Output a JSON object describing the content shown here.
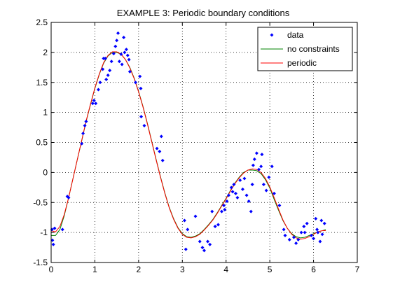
{
  "chart_data": {
    "type": "scatter",
    "title": "EXAMPLE 3: Periodic boundary conditions",
    "xlabel": "",
    "ylabel": "",
    "xlim": [
      0,
      7
    ],
    "ylim": [
      -1.5,
      2.5
    ],
    "xticks": [
      "0",
      "1",
      "2",
      "3",
      "4",
      "5",
      "6",
      "7"
    ],
    "yticks": [
      "-1.5",
      "-1",
      "-0.5",
      "0",
      "0.5",
      "1",
      "1.5",
      "2",
      "2.5"
    ],
    "grid": "dotted",
    "legend_position": "top-right",
    "series": [
      {
        "name": "data",
        "kind": "points",
        "color": "#0000ff",
        "points": [
          [
            0.02,
            -0.95
          ],
          [
            0.03,
            -1.13
          ],
          [
            0.05,
            -1.2
          ],
          [
            0.08,
            -0.93
          ],
          [
            0.26,
            -0.95
          ],
          [
            0.37,
            -0.4
          ],
          [
            0.4,
            -0.42
          ],
          [
            0.7,
            0.48
          ],
          [
            0.73,
            0.65
          ],
          [
            0.77,
            0.78
          ],
          [
            0.8,
            0.85
          ],
          [
            0.95,
            1.15
          ],
          [
            0.98,
            1.2
          ],
          [
            1.02,
            1.15
          ],
          [
            1.08,
            1.38
          ],
          [
            1.12,
            1.5
          ],
          [
            1.18,
            1.72
          ],
          [
            1.2,
            1.9
          ],
          [
            1.24,
            1.9
          ],
          [
            1.26,
            1.55
          ],
          [
            1.3,
            1.62
          ],
          [
            1.34,
            1.7
          ],
          [
            1.38,
            1.85
          ],
          [
            1.43,
            1.98
          ],
          [
            1.47,
            2.1
          ],
          [
            1.5,
            2.2
          ],
          [
            1.53,
            2.32
          ],
          [
            1.56,
            1.85
          ],
          [
            1.6,
            1.97
          ],
          [
            1.62,
            1.8
          ],
          [
            1.66,
            2.25
          ],
          [
            1.68,
            2.0
          ],
          [
            1.72,
            2.05
          ],
          [
            1.75,
            1.95
          ],
          [
            1.78,
            1.88
          ],
          [
            1.8,
            1.68
          ],
          [
            1.93,
            1.5
          ],
          [
            2.03,
            1.6
          ],
          [
            2.05,
            1.4
          ],
          [
            2.06,
            0.93
          ],
          [
            2.13,
            0.78
          ],
          [
            2.42,
            0.4
          ],
          [
            2.48,
            0.35
          ],
          [
            2.52,
            0.6
          ],
          [
            2.55,
            0.2
          ],
          [
            3.05,
            -0.8
          ],
          [
            3.08,
            -1.28
          ],
          [
            3.12,
            -0.95
          ],
          [
            3.3,
            -0.73
          ],
          [
            3.4,
            -1.15
          ],
          [
            3.46,
            -1.25
          ],
          [
            3.5,
            -1.3
          ],
          [
            3.58,
            -1.15
          ],
          [
            3.63,
            -1.2
          ],
          [
            3.68,
            -0.65
          ],
          [
            3.75,
            -0.9
          ],
          [
            3.82,
            -0.87
          ],
          [
            3.9,
            -0.65
          ],
          [
            3.95,
            -0.55
          ],
          [
            3.97,
            -0.62
          ],
          [
            4.02,
            -0.48
          ],
          [
            4.06,
            -0.38
          ],
          [
            4.12,
            -0.25
          ],
          [
            4.15,
            -0.32
          ],
          [
            4.18,
            -0.2
          ],
          [
            4.22,
            -0.35
          ],
          [
            4.26,
            -0.42
          ],
          [
            4.32,
            -0.13
          ],
          [
            4.38,
            -0.28
          ],
          [
            4.42,
            -0.1
          ],
          [
            4.47,
            -0.38
          ],
          [
            4.52,
            -0.48
          ],
          [
            4.57,
            -0.65
          ],
          [
            4.6,
            -0.2
          ],
          [
            4.62,
            0.12
          ],
          [
            4.65,
            0.22
          ],
          [
            4.7,
            0.32
          ],
          [
            4.75,
            0.05
          ],
          [
            4.8,
            0.1
          ],
          [
            4.82,
            0.3
          ],
          [
            4.86,
            -0.2
          ],
          [
            4.92,
            -0.3
          ],
          [
            4.98,
            -0.08
          ],
          [
            5.05,
            0.1
          ],
          [
            5.1,
            -0.35
          ],
          [
            5.22,
            -0.55
          ],
          [
            5.32,
            -0.95
          ],
          [
            5.35,
            -1.05
          ],
          [
            5.45,
            -1.12
          ],
          [
            5.55,
            -1.08
          ],
          [
            5.6,
            -1.18
          ],
          [
            5.65,
            -1.12
          ],
          [
            5.72,
            -1.0
          ],
          [
            5.78,
            -0.9
          ],
          [
            5.8,
            -1.0
          ],
          [
            5.85,
            -0.85
          ],
          [
            5.95,
            -1.05
          ],
          [
            6.0,
            -1.1
          ],
          [
            6.05,
            -0.77
          ],
          [
            6.08,
            -0.95
          ],
          [
            6.1,
            -1.0
          ],
          [
            6.15,
            -1.15
          ],
          [
            6.18,
            -0.8
          ],
          [
            6.2,
            -1.03
          ],
          [
            6.25,
            -0.85
          ]
        ]
      },
      {
        "name": "no constraints",
        "kind": "line",
        "color": "#008000",
        "points": [
          [
            0.0,
            -1.05
          ],
          [
            0.1,
            -1.05
          ],
          [
            0.2,
            -0.95
          ],
          [
            0.3,
            -0.72
          ],
          [
            0.4,
            -0.42
          ],
          [
            0.5,
            -0.1
          ],
          [
            0.6,
            0.22
          ],
          [
            0.7,
            0.53
          ],
          [
            0.8,
            0.85
          ],
          [
            0.9,
            1.13
          ],
          [
            1.0,
            1.4
          ],
          [
            1.1,
            1.63
          ],
          [
            1.2,
            1.82
          ],
          [
            1.3,
            1.94
          ],
          [
            1.4,
            2.0
          ],
          [
            1.5,
            2.0
          ],
          [
            1.6,
            1.97
          ],
          [
            1.7,
            1.88
          ],
          [
            1.8,
            1.75
          ],
          [
            1.9,
            1.57
          ],
          [
            2.0,
            1.35
          ],
          [
            2.1,
            1.1
          ],
          [
            2.2,
            0.82
          ],
          [
            2.3,
            0.52
          ],
          [
            2.4,
            0.22
          ],
          [
            2.5,
            -0.07
          ],
          [
            2.6,
            -0.34
          ],
          [
            2.7,
            -0.58
          ],
          [
            2.8,
            -0.77
          ],
          [
            2.9,
            -0.92
          ],
          [
            3.0,
            -1.02
          ],
          [
            3.1,
            -1.07
          ],
          [
            3.2,
            -1.08
          ],
          [
            3.3,
            -1.06
          ],
          [
            3.4,
            -1.02
          ],
          [
            3.5,
            -0.95
          ],
          [
            3.6,
            -0.87
          ],
          [
            3.7,
            -0.78
          ],
          [
            3.8,
            -0.67
          ],
          [
            3.9,
            -0.55
          ],
          [
            4.0,
            -0.43
          ],
          [
            4.1,
            -0.3
          ],
          [
            4.2,
            -0.18
          ],
          [
            4.3,
            -0.08
          ],
          [
            4.4,
            0.0
          ],
          [
            4.5,
            0.04
          ],
          [
            4.6,
            0.04
          ],
          [
            4.7,
            0.03
          ],
          [
            4.8,
            -0.02
          ],
          [
            4.9,
            -0.12
          ],
          [
            5.0,
            -0.26
          ],
          [
            5.1,
            -0.45
          ],
          [
            5.2,
            -0.63
          ],
          [
            5.3,
            -0.8
          ],
          [
            5.4,
            -0.93
          ],
          [
            5.5,
            -1.02
          ],
          [
            5.6,
            -1.07
          ],
          [
            5.7,
            -1.09
          ],
          [
            5.8,
            -1.08
          ],
          [
            5.9,
            -1.05
          ],
          [
            6.0,
            -1.02
          ],
          [
            6.1,
            -0.99
          ],
          [
            6.2,
            -0.97
          ],
          [
            6.28,
            -0.95
          ]
        ]
      },
      {
        "name": "periodic",
        "kind": "line",
        "color": "#ff0000",
        "points": [
          [
            0.0,
            -0.97
          ],
          [
            0.1,
            -0.99
          ],
          [
            0.2,
            -0.9
          ],
          [
            0.3,
            -0.7
          ],
          [
            0.4,
            -0.42
          ],
          [
            0.5,
            -0.1
          ],
          [
            0.6,
            0.22
          ],
          [
            0.7,
            0.54
          ],
          [
            0.8,
            0.86
          ],
          [
            0.9,
            1.14
          ],
          [
            1.0,
            1.41
          ],
          [
            1.1,
            1.64
          ],
          [
            1.2,
            1.83
          ],
          [
            1.3,
            1.95
          ],
          [
            1.4,
            2.01
          ],
          [
            1.5,
            2.01
          ],
          [
            1.6,
            1.97
          ],
          [
            1.7,
            1.88
          ],
          [
            1.8,
            1.74
          ],
          [
            1.9,
            1.56
          ],
          [
            2.0,
            1.34
          ],
          [
            2.1,
            1.09
          ],
          [
            2.2,
            0.81
          ],
          [
            2.3,
            0.51
          ],
          [
            2.4,
            0.21
          ],
          [
            2.5,
            -0.08
          ],
          [
            2.6,
            -0.35
          ],
          [
            2.7,
            -0.59
          ],
          [
            2.8,
            -0.78
          ],
          [
            2.9,
            -0.93
          ],
          [
            3.0,
            -1.03
          ],
          [
            3.1,
            -1.08
          ],
          [
            3.2,
            -1.09
          ],
          [
            3.3,
            -1.07
          ],
          [
            3.4,
            -1.03
          ],
          [
            3.5,
            -0.96
          ],
          [
            3.6,
            -0.88
          ],
          [
            3.7,
            -0.79
          ],
          [
            3.8,
            -0.68
          ],
          [
            3.9,
            -0.56
          ],
          [
            4.0,
            -0.44
          ],
          [
            4.1,
            -0.31
          ],
          [
            4.2,
            -0.19
          ],
          [
            4.3,
            -0.09
          ],
          [
            4.4,
            -0.01
          ],
          [
            4.5,
            0.04
          ],
          [
            4.6,
            0.06
          ],
          [
            4.7,
            0.05
          ],
          [
            4.8,
            0.0
          ],
          [
            4.9,
            -0.1
          ],
          [
            5.0,
            -0.24
          ],
          [
            5.1,
            -0.42
          ],
          [
            5.2,
            -0.61
          ],
          [
            5.3,
            -0.79
          ],
          [
            5.4,
            -0.93
          ],
          [
            5.5,
            -1.03
          ],
          [
            5.6,
            -1.09
          ],
          [
            5.7,
            -1.11
          ],
          [
            5.8,
            -1.1
          ],
          [
            5.9,
            -1.07
          ],
          [
            6.0,
            -1.03
          ],
          [
            6.1,
            -0.99
          ],
          [
            6.2,
            -0.97
          ],
          [
            6.28,
            -0.97
          ]
        ]
      }
    ]
  }
}
